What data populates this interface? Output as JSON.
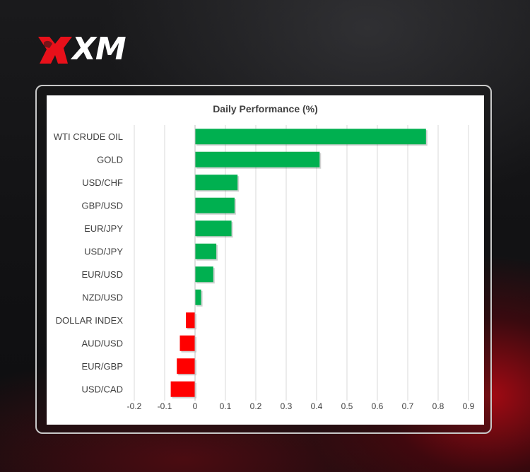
{
  "brand": {
    "logo_text": "XM"
  },
  "colors": {
    "positive": "#00b050",
    "negative": "#ff0000",
    "grid": "#d9d9d9",
    "text": "#404040"
  },
  "chart_data": {
    "type": "bar",
    "orientation": "horizontal",
    "title": "Daily Performance (%)",
    "xlabel": "",
    "ylabel": "",
    "categories": [
      "WTI CRUDE OIL",
      "GOLD",
      "USD/CHF",
      "GBP/USD",
      "EUR/JPY",
      "USD/JPY",
      "EUR/USD",
      "NZD/USD",
      "DOLLAR INDEX",
      "AUD/USD",
      "EUR/GBP",
      "USD/CAD"
    ],
    "values": [
      0.76,
      0.41,
      0.14,
      0.13,
      0.12,
      0.07,
      0.06,
      0.02,
      -0.03,
      -0.05,
      -0.06,
      -0.08
    ],
    "xlim": [
      -0.2,
      0.9
    ],
    "x_ticks": [
      "-0.2",
      "-0.1",
      "0",
      "0.1",
      "0.2",
      "0.3",
      "0.4",
      "0.5",
      "0.6",
      "0.7",
      "0.8",
      "0.9"
    ],
    "grid": "vertical",
    "legend": "none"
  }
}
